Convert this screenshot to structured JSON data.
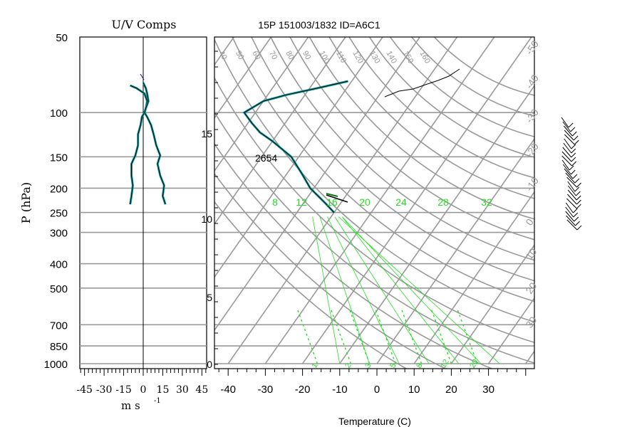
{
  "title": "15P 151003/1832 ID=A6C1",
  "uv_panel": {
    "title": "U/V Comps",
    "ylabel": "P (hPa)",
    "xlabel": "m s",
    "xlabel_exp": "-1",
    "p_ticks": [
      50,
      100,
      150,
      200,
      250,
      300,
      400,
      500,
      700,
      850,
      1000
    ],
    "x_ticks": [
      "-45",
      "-30",
      "-15",
      "0",
      "15",
      "30",
      "45"
    ]
  },
  "skewt_panel": {
    "xlabel": "Temperature (C)",
    "t_ticks": [
      "-40",
      "-30",
      "-20",
      "-10",
      "0",
      "10",
      "20",
      "30"
    ],
    "height_ticks": [
      "0",
      "5",
      "10",
      "15"
    ],
    "annotation": "2654",
    "theta_labels": [
      "40",
      "50",
      "60",
      "70",
      "80",
      "90",
      "100",
      "110",
      "120",
      "130",
      "140",
      "150",
      "160"
    ],
    "isotherm_labels_right": [
      "-50",
      "-40",
      "-30",
      "-20",
      "-10",
      "0",
      "10",
      "20",
      "30"
    ],
    "mixing_ratio_labels": [
      "8",
      "12",
      "16",
      "20",
      "24",
      "28",
      "32"
    ],
    "mixing_bottom_labels": [
      "1",
      "2",
      "3",
      "5",
      "8",
      "12",
      "20"
    ],
    "colors": {
      "grid": "#999999",
      "moist": "#22dd22",
      "sounding": "#000000",
      "dewpoint": "#009a9a"
    }
  },
  "chart_data": {
    "type": "line",
    "title": "15P 151003/1832 ID=A6C1",
    "panels": [
      {
        "name": "U/V Comps",
        "xlabel": "m s -1",
        "ylabel": "P (hPa)",
        "xlim": [
          -50,
          50
        ],
        "ylim": [
          1000,
          50
        ],
        "yscale": "log",
        "series": [
          {
            "p": [
              232,
              215,
              195,
              178,
              160,
              148,
              135,
              122,
              112,
              104,
              100,
              96,
              90,
              84,
              80,
              78
            ],
            "values": [
              -10,
              -9,
              -8,
              -9,
              -9,
              -6,
              -4,
              -4,
              -2,
              -1,
              1,
              2,
              3,
              1,
              -5,
              -10
            ]
          },
          {
            "p": [
              232,
              215,
              195,
              178,
              160,
              148,
              135,
              122,
              112,
              104,
              100,
              96,
              90,
              84,
              80,
              76
            ],
            "values": [
              17,
              15,
              16,
              13,
              11,
              13,
              10,
              8,
              6,
              3,
              1,
              2,
              4,
              3,
              2,
              0
            ]
          }
        ]
      },
      {
        "name": "Skew-T",
        "xlabel": "Temperature (C)",
        "xlim": [
          -45,
          40
        ],
        "sounding": {
          "p": [
            250,
            230,
            200,
            175,
            150,
            130,
            120,
            110,
            100,
            90,
            85,
            80,
            75
          ],
          "T": [
            -40,
            -44,
            -51,
            -56,
            -62,
            -70,
            -75,
            -79,
            -83,
            -80,
            -75,
            -68,
            -61
          ]
        },
        "dewpoint_fragment": {
          "p": [
            310,
            300
          ],
          "T": [
            -51,
            -47
          ]
        }
      }
    ]
  }
}
